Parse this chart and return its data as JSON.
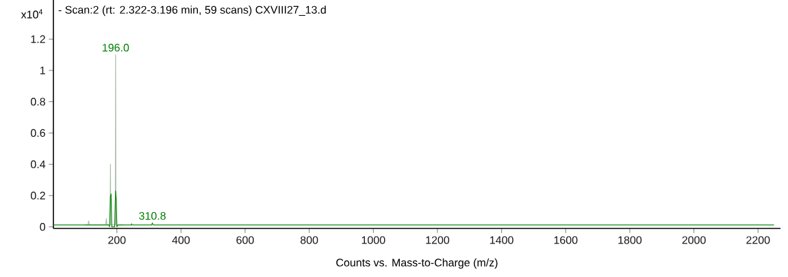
{
  "chart_data": {
    "type": "line",
    "title": "- Scan:2 (rt: 2.322-3.196 min, 59 scans) CXVIII27_13.d",
    "xlabel": "Counts vs. Mass-to-Charge (m/z)",
    "ylabel": "x10$^{4}$",
    "xlim": [
      2,
      2270
    ],
    "ylim": [
      -0.01,
      1.45
    ],
    "xticks": [
      200,
      400,
      600,
      800,
      1000,
      1200,
      1400,
      1600,
      1800,
      2000,
      2200
    ],
    "yticks": [
      0,
      0.2,
      0.4,
      0.6,
      0.8,
      1,
      1.2
    ],
    "grid": false,
    "marker": "none",
    "series": [
      {
        "color": "#a8bea8",
        "x": [
          100,
          110,
          112,
          114,
          165,
          167,
          169,
          179,
          180,
          181,
          195,
          196,
          197,
          220
        ],
        "values": [
          0.012,
          0.012,
          0.038,
          0.012,
          0.012,
          0.052,
          0.012,
          0.012,
          0.4,
          0.012,
          0.012,
          1.1,
          0.012,
          0.012
        ]
      },
      {
        "color": "#108a10",
        "x": [
          2,
          175,
          177,
          180,
          182,
          184,
          193,
          196,
          198,
          200,
          203,
          245,
          246,
          247,
          308,
          310.8,
          313,
          2250
        ],
        "values": [
          0.012,
          0.012,
          0,
          0.2,
          0.21,
          0,
          0,
          0.23,
          0.18,
          0,
          0.012,
          0.012,
          0.02,
          0.012,
          0.012,
          0.025,
          0.012,
          0.012
        ]
      }
    ],
    "annotations": [
      {
        "text": "196.0",
        "x": 196,
        "y": 1.1
      },
      {
        "text": "310.8",
        "x": 310.8,
        "y": 0.025
      }
    ]
  }
}
